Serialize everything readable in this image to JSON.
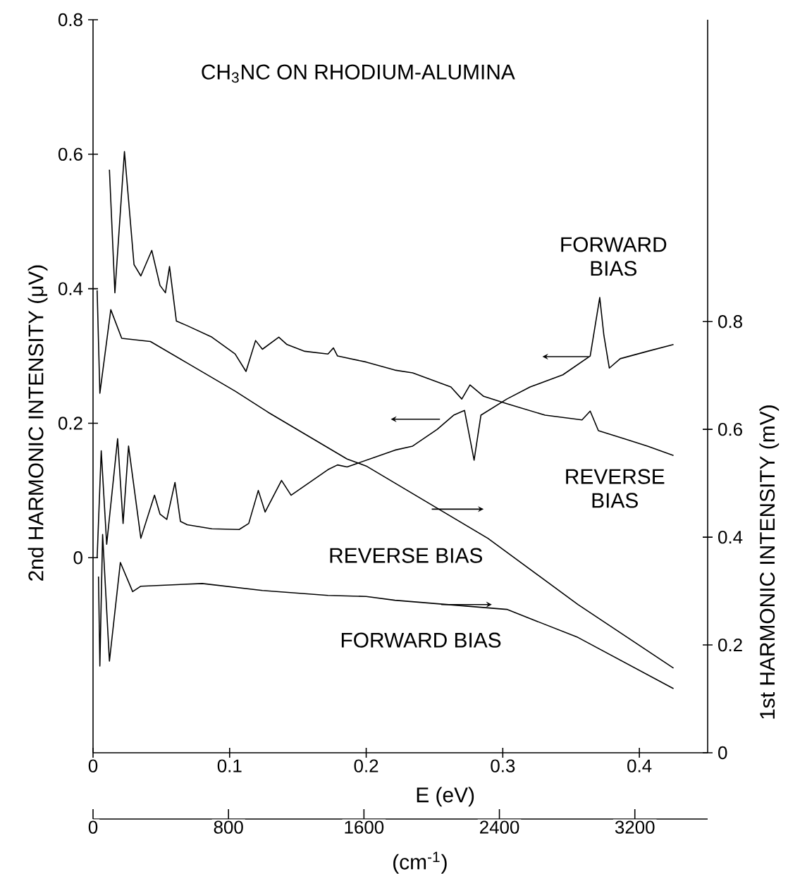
{
  "chart_data": {
    "type": "line",
    "title": "CH$_{3}$NC ON RHODIUM-ALUMINA",
    "xlabel": "E (eV)",
    "x2label": "(cm$^{-1}$)",
    "ylabel": "2nd HARMONIC INTENSITY (μV)",
    "y2label": "1st HARMONIC INTENSITY (mV)",
    "xlim": [
      0,
      0.45
    ],
    "xticks": [
      0,
      0.1,
      0.2,
      0.3,
      0.4
    ],
    "x2lim": [
      0,
      3630
    ],
    "x2ticks": [
      0,
      800,
      1600,
      2400,
      3200
    ],
    "ylim": [
      -0.29,
      0.8
    ],
    "yticks": [
      0,
      0.2,
      0.4,
      0.6,
      0.8
    ],
    "y2lim": [
      0,
      1.36
    ],
    "y2ticks": [
      0,
      0.2,
      0.4,
      0.6,
      0.8
    ],
    "series": [
      {
        "name": "REVERSE BIAS",
        "color": "#000000",
        "x": [
          0.012,
          0.016,
          0.023,
          0.03,
          0.035,
          0.043,
          0.049,
          0.053,
          0.056,
          0.061,
          0.069,
          0.087,
          0.104,
          0.112,
          0.119,
          0.124,
          0.136,
          0.142,
          0.155,
          0.172,
          0.176,
          0.179,
          0.2,
          0.221,
          0.234,
          0.262,
          0.27,
          0.276,
          0.286,
          0.303,
          0.331,
          0.358,
          0.364,
          0.37,
          0.389,
          0.406,
          0.425
        ],
        "values": [
          0.577,
          0.394,
          0.604,
          0.436,
          0.419,
          0.457,
          0.405,
          0.394,
          0.433,
          0.352,
          0.345,
          0.328,
          0.303,
          0.277,
          0.323,
          0.31,
          0.328,
          0.317,
          0.307,
          0.303,
          0.312,
          0.3,
          0.291,
          0.279,
          0.275,
          0.254,
          0.236,
          0.257,
          0.24,
          0.229,
          0.212,
          0.205,
          0.218,
          0.189,
          0.177,
          0.166,
          0.152
        ]
      },
      {
        "name": "FORWARD BIAS",
        "color": "#000000",
        "x": [
          0.003,
          0.006,
          0.01,
          0.018,
          0.022,
          0.026,
          0.035,
          0.045,
          0.049,
          0.054,
          0.06,
          0.064,
          0.069,
          0.087,
          0.107,
          0.114,
          0.121,
          0.126,
          0.138,
          0.145,
          0.172,
          0.179,
          0.186,
          0.207,
          0.221,
          0.234,
          0.252,
          0.264,
          0.272,
          0.279,
          0.284,
          0.303,
          0.32,
          0.344,
          0.364,
          0.371,
          0.374,
          0.378,
          0.386,
          0.406,
          0.425
        ],
        "values": [
          0.0,
          0.159,
          0.02,
          0.177,
          0.051,
          0.166,
          0.029,
          0.093,
          0.065,
          0.057,
          0.112,
          0.054,
          0.049,
          0.043,
          0.042,
          0.051,
          0.1,
          0.068,
          0.115,
          0.093,
          0.131,
          0.138,
          0.135,
          0.15,
          0.16,
          0.166,
          0.191,
          0.212,
          0.219,
          0.145,
          0.212,
          0.236,
          0.254,
          0.272,
          0.3,
          0.387,
          0.331,
          0.282,
          0.296,
          0.307,
          0.317
        ]
      },
      {
        "name": "REVERSE BIAS",
        "color": "#000000",
        "axis": "y2",
        "x": [
          0.003,
          0.005,
          0.013,
          0.021,
          0.042,
          0.069,
          0.104,
          0.128,
          0.186,
          0.2,
          0.289,
          0.355,
          0.425
        ],
        "values": [
          0.858,
          0.667,
          0.822,
          0.769,
          0.763,
          0.723,
          0.671,
          0.632,
          0.545,
          0.532,
          0.398,
          0.275,
          0.157
        ]
      },
      {
        "name": "FORWARD BIAS",
        "color": "#000000",
        "axis": "y2",
        "x": [
          0.004,
          0.005,
          0.007,
          0.012,
          0.02,
          0.029,
          0.035,
          0.08,
          0.124,
          0.172,
          0.2,
          0.221,
          0.303,
          0.355,
          0.425
        ],
        "values": [
          0.327,
          0.161,
          0.405,
          0.17,
          0.353,
          0.299,
          0.309,
          0.314,
          0.301,
          0.292,
          0.29,
          0.283,
          0.266,
          0.214,
          0.119
        ]
      }
    ]
  }
}
